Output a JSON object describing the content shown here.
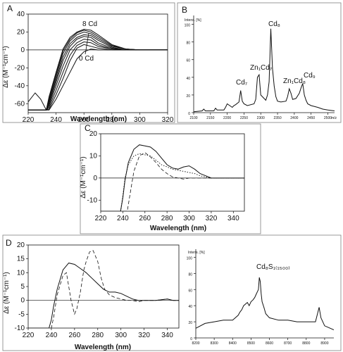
{
  "figure": {
    "border_color": "#7f7f7f",
    "line_color": "#111111"
  },
  "panels": [
    {
      "letter": "A"
    },
    {
      "letter": "B"
    },
    {
      "letter": "C"
    },
    {
      "letter": "D"
    }
  ],
  "chart_data": [
    {
      "panel": "A",
      "type": "line",
      "xlabel": "Wavelength (nm)",
      "ylabel": "Δε (M⁻¹cm⁻¹)",
      "xlim": [
        220,
        320
      ],
      "ylim": [
        -70,
        40
      ],
      "xticks": [
        220,
        240,
        260,
        280,
        300,
        320
      ],
      "yticks": [
        -60,
        -40,
        -20,
        0,
        20,
        40
      ],
      "annotations": [
        "8 Cd",
        "0 Cd"
      ],
      "legend": "none",
      "series": [
        {
          "x": [
            220,
            225,
            229,
            233,
            235,
            240,
            245,
            250,
            255,
            260,
            265,
            270,
            280,
            290,
            300,
            320
          ],
          "y": [
            -58,
            -48,
            -55,
            -67,
            -67,
            -55,
            -40,
            -25,
            -10,
            -2,
            1,
            0,
            0,
            0,
            0,
            0
          ]
        },
        {
          "x": [
            220,
            233,
            235,
            240,
            245,
            250,
            255,
            260,
            265,
            270,
            280,
            290,
            300,
            320
          ],
          "y": [
            -67,
            -67,
            -66,
            -50,
            -32,
            -12,
            2,
            6,
            4,
            2,
            0,
            0,
            0,
            0
          ]
        },
        {
          "x": [
            220,
            233,
            235,
            240,
            245,
            250,
            255,
            260,
            265,
            270,
            280,
            290,
            300,
            320
          ],
          "y": [
            -67,
            -67,
            -64,
            -45,
            -25,
            -6,
            5,
            9,
            8,
            4,
            1,
            0,
            0,
            0
          ]
        },
        {
          "x": [
            220,
            233,
            235,
            240,
            245,
            250,
            255,
            260,
            265,
            270,
            280,
            290,
            300,
            320
          ],
          "y": [
            -67,
            -67,
            -62,
            -40,
            -18,
            0,
            8,
            12,
            11,
            6,
            1,
            0,
            0,
            0
          ]
        },
        {
          "x": [
            220,
            233,
            235,
            240,
            245,
            250,
            255,
            260,
            265,
            270,
            280,
            290,
            300,
            320
          ],
          "y": [
            -67,
            -67,
            -60,
            -36,
            -12,
            4,
            12,
            15,
            14,
            8,
            2,
            0,
            0,
            0
          ]
        },
        {
          "x": [
            220,
            233,
            235,
            240,
            245,
            250,
            255,
            260,
            265,
            270,
            280,
            290,
            300,
            320
          ],
          "y": [
            -67,
            -67,
            -58,
            -33,
            -8,
            7,
            14,
            17,
            16,
            11,
            3,
            0,
            0,
            0
          ]
        },
        {
          "x": [
            220,
            233,
            235,
            240,
            245,
            250,
            255,
            260,
            265,
            270,
            280,
            290,
            300,
            320
          ],
          "y": [
            -67,
            -67,
            -56,
            -30,
            -4,
            10,
            17,
            20,
            18,
            13,
            4,
            1,
            0,
            0
          ]
        },
        {
          "x": [
            220,
            233,
            235,
            240,
            245,
            250,
            255,
            260,
            265,
            270,
            280,
            290,
            300,
            320
          ],
          "y": [
            -67,
            -67,
            -54,
            -27,
            -1,
            12,
            19,
            22,
            20,
            15,
            5,
            1,
            0,
            0
          ]
        },
        {
          "x": [
            220,
            233,
            235,
            240,
            245,
            250,
            255,
            260,
            265,
            270,
            280,
            290,
            300,
            320
          ],
          "y": [
            -67,
            -67,
            -52,
            -25,
            1,
            14,
            20,
            23,
            22,
            17,
            6,
            1,
            0,
            0
          ]
        }
      ]
    },
    {
      "panel": "B",
      "type": "line",
      "ylabel": "Intens. [%]",
      "xlabel": "m/z",
      "xlim": [
        2100,
        2520
      ],
      "ylim": [
        0,
        110
      ],
      "yticks": [
        0,
        20,
        40,
        60,
        80,
        100
      ],
      "xticks": [
        2100,
        2150,
        2200,
        2250,
        2300,
        2350,
        2400,
        2450,
        2500
      ],
      "peak_labels": [
        "Cd₇",
        "Zn₁Cd₇",
        "Cd₈",
        "Zn₁Cd₈",
        "Cd₉"
      ],
      "series": [
        {
          "x": [
            2100,
            2125,
            2130,
            2135,
            2160,
            2165,
            2170,
            2180,
            2190,
            2195,
            2200,
            2215,
            2220,
            2225,
            2235,
            2240,
            2245,
            2250,
            2260,
            2280,
            2285,
            2290,
            2295,
            2300,
            2315,
            2320,
            2325,
            2330,
            2335,
            2340,
            2345,
            2350,
            2360,
            2375,
            2380,
            2385,
            2390,
            2395,
            2405,
            2415,
            2420,
            2425,
            2430,
            2435,
            2440,
            2450,
            2470,
            2485,
            2500,
            2520
          ],
          "y": [
            1,
            2,
            4,
            2,
            2,
            5,
            3,
            3,
            3,
            6,
            10,
            6,
            8,
            9,
            12,
            25,
            13,
            10,
            8,
            10,
            15,
            40,
            43,
            20,
            14,
            20,
            35,
            95,
            50,
            30,
            18,
            13,
            12,
            13,
            18,
            27,
            22,
            15,
            16,
            22,
            28,
            33,
            20,
            14,
            10,
            8,
            6,
            4,
            3,
            2
          ]
        }
      ]
    },
    {
      "panel": "C",
      "type": "line",
      "xlabel": "Wavelength (nm)",
      "ylabel": "Δε (M⁻¹cm⁻¹)",
      "xlim": [
        220,
        350
      ],
      "ylim": [
        -15,
        20
      ],
      "xticks": [
        220,
        240,
        260,
        280,
        300,
        320,
        340
      ],
      "yticks": [
        -10,
        0,
        10,
        20
      ],
      "legend": "none",
      "series": [
        {
          "style": "solid",
          "x": [
            220,
            238,
            240,
            242,
            245,
            250,
            255,
            260,
            265,
            270,
            275,
            280,
            285,
            290,
            295,
            300,
            305,
            310,
            315,
            320,
            330,
            340,
            350
          ],
          "y": [
            -15,
            -15,
            -9,
            -1,
            7,
            13,
            15,
            14.5,
            14,
            12,
            9,
            6,
            4.5,
            4,
            5,
            5.5,
            4,
            2,
            1,
            0,
            0,
            0,
            0
          ]
        },
        {
          "style": "dotted",
          "x": [
            220,
            238,
            240,
            242,
            245,
            250,
            255,
            260,
            265,
            270,
            275,
            280,
            285,
            290,
            295,
            300,
            305,
            310,
            320,
            330,
            350
          ],
          "y": [
            -15,
            -15,
            -8,
            0,
            6,
            10,
            11,
            10.5,
            10,
            8,
            6,
            5,
            4,
            3.5,
            3,
            2.5,
            2,
            1,
            0,
            0,
            0
          ]
        },
        {
          "style": "dashed",
          "x": [
            220,
            244,
            246,
            248,
            250,
            255,
            260,
            265,
            270,
            275,
            280,
            285,
            290,
            295,
            300,
            310,
            320,
            350
          ],
          "y": [
            -15,
            -15,
            -9,
            -3,
            3,
            10,
            11.5,
            9.5,
            7,
            4,
            2,
            0.5,
            0,
            -0.5,
            0,
            0,
            0,
            0
          ]
        }
      ]
    },
    {
      "panel": "D-left",
      "type": "line",
      "xlabel": "Wavelength (nm)",
      "ylabel": "Δε (M⁻¹cm⁻¹)",
      "xlim": [
        220,
        350
      ],
      "ylim": [
        -10,
        20
      ],
      "xticks": [
        220,
        240,
        260,
        280,
        300,
        320,
        340
      ],
      "yticks": [
        -10,
        -5,
        0,
        5,
        10,
        15,
        20
      ],
      "legend": "none",
      "series": [
        {
          "style": "solid",
          "x": [
            220,
            238,
            240,
            242,
            245,
            250,
            255,
            260,
            265,
            270,
            275,
            280,
            285,
            290,
            295,
            300,
            305,
            310,
            315,
            320,
            330,
            340,
            345,
            350
          ],
          "y": [
            -10,
            -10,
            -7,
            -2,
            4,
            11,
            13.5,
            13,
            11.5,
            10,
            8,
            6,
            4,
            3,
            3,
            2.5,
            1.5,
            0.5,
            0,
            0,
            0,
            0.5,
            0,
            0
          ]
        },
        {
          "style": "dashed",
          "x": [
            220,
            240,
            242,
            245,
            250,
            253,
            257,
            260,
            262,
            265,
            268,
            270,
            273,
            276,
            280,
            283,
            286,
            290,
            295,
            300,
            305,
            310,
            315,
            320,
            330,
            340,
            345,
            350
          ],
          "y": [
            -10,
            -10,
            -6,
            2,
            9,
            10,
            0,
            -5,
            -3,
            3,
            11,
            14,
            17.5,
            18,
            14,
            8,
            4,
            2,
            1,
            0.5,
            0,
            0,
            -0.5,
            0,
            0,
            0.5,
            0,
            0
          ]
        }
      ]
    },
    {
      "panel": "D-right",
      "type": "line",
      "ylabel": "Intens. [%]",
      "peak_labels": [
        "Cd₈S₁₍₁₅₀₀₎"
      ],
      "xlim": [
        8200,
        8950
      ],
      "ylim": [
        0,
        110
      ],
      "yticks": [
        0,
        20,
        40,
        60,
        80,
        100
      ],
      "xticks": [
        8200,
        8300,
        8400,
        8500,
        8600,
        8700,
        8800,
        8900
      ],
      "series": [
        {
          "x": [
            8200,
            8250,
            8300,
            8350,
            8400,
            8430,
            8440,
            8450,
            8460,
            8470,
            8480,
            8490,
            8500,
            8510,
            8520,
            8530,
            8540,
            8545,
            8550,
            8555,
            8560,
            8570,
            8580,
            8600,
            8650,
            8700,
            8750,
            8800,
            8850,
            8870,
            8880,
            8890,
            8900,
            8950
          ],
          "y": [
            12,
            18,
            20,
            22,
            22,
            28,
            32,
            35,
            40,
            42,
            44,
            40,
            45,
            47,
            50,
            55,
            60,
            75,
            70,
            55,
            45,
            38,
            30,
            25,
            22,
            22,
            20,
            20,
            20,
            38,
            25,
            20,
            15,
            10
          ]
        }
      ]
    }
  ]
}
